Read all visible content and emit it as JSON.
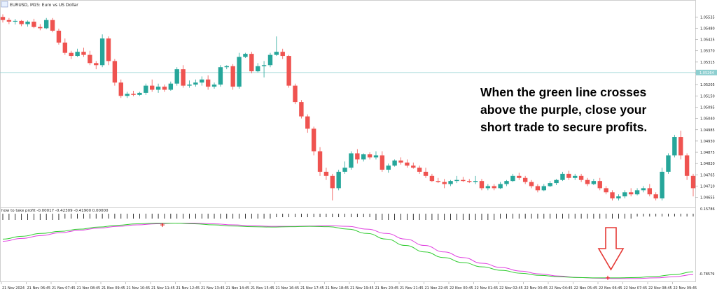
{
  "header": {
    "title": "EURUSD, M15:  Euro vs US Dollar",
    "indicator_label": "how to take profit -0.00017 -0.42309 -0.41900 0.00000"
  },
  "price_axis": {
    "ticks": [
      "1.05535",
      "1.05480",
      "1.05425",
      "1.05370",
      "1.05315",
      "1.05260",
      "1.05205",
      "1.05150",
      "1.05095",
      "1.05040",
      "1.04985",
      "1.04930",
      "1.04875",
      "1.04820",
      "1.04765",
      "1.04710",
      "1.04655"
    ],
    "current_price": "1.05264"
  },
  "indicator_axis": {
    "top": "0.15786",
    "bottom": "-0.78579"
  },
  "time_axis": {
    "labels": [
      "21 Nov 2024",
      "21 Nov 06:45",
      "21 Nov 07:45",
      "21 Nov 08:45",
      "21 Nov 09:45",
      "21 Nov 10:45",
      "21 Nov 11:45",
      "21 Nov 12:45",
      "21 Nov 13:45",
      "21 Nov 14:45",
      "21 Nov 15:45",
      "21 Nov 16:45",
      "21 Nov 17:45",
      "21 Nov 18:45",
      "21 Nov 19:45",
      "21 Nov 20:45",
      "21 Nov 21:45",
      "21 Nov 22:45",
      "22 Nov 00:45",
      "22 Nov 01:45",
      "22 Nov 02:45",
      "22 Nov 03:45",
      "22 Nov 04:45",
      "22 Nov 05:45",
      "22 Nov 06:45",
      "22 Nov 07:45",
      "22 Nov 08:45",
      "22 Nov 09:45"
    ]
  },
  "callout": {
    "lines": [
      "When the green line crosses",
      "above the purple, close your",
      "short trade to secure profits."
    ]
  },
  "colors": {
    "bull": "#26a69a",
    "bear": "#ef5350",
    "green_line": "#2ecc2e",
    "purple_line": "#e040e0",
    "arrow": "#e53935",
    "cross_marker": "#e53935",
    "current_price_line": "#8ecfd0",
    "current_price_box": "#8ecfd0"
  },
  "chart_data": {
    "type": "candlestick",
    "ylim": [
      1.0463,
      1.0557
    ],
    "candles": [
      {
        "o": 1.05535,
        "h": 1.05548,
        "l": 1.05508,
        "c": 1.0552
      },
      {
        "o": 1.0552,
        "h": 1.0553,
        "l": 1.055,
        "c": 1.05512
      },
      {
        "o": 1.05512,
        "h": 1.05525,
        "l": 1.05498,
        "c": 1.05516
      },
      {
        "o": 1.05516,
        "h": 1.0552,
        "l": 1.0549,
        "c": 1.055
      },
      {
        "o": 1.055,
        "h": 1.05518,
        "l": 1.05488,
        "c": 1.05512
      },
      {
        "o": 1.05512,
        "h": 1.05526,
        "l": 1.0548,
        "c": 1.05486
      },
      {
        "o": 1.05486,
        "h": 1.055,
        "l": 1.0547,
        "c": 1.0548
      },
      {
        "o": 1.0548,
        "h": 1.0553,
        "l": 1.05475,
        "c": 1.0552
      },
      {
        "o": 1.0552,
        "h": 1.0553,
        "l": 1.0546,
        "c": 1.05468
      },
      {
        "o": 1.05468,
        "h": 1.05478,
        "l": 1.054,
        "c": 1.0541
      },
      {
        "o": 1.0541,
        "h": 1.0543,
        "l": 1.0535,
        "c": 1.0536
      },
      {
        "o": 1.0536,
        "h": 1.0537,
        "l": 1.0533,
        "c": 1.05345
      },
      {
        "o": 1.05345,
        "h": 1.0538,
        "l": 1.0534,
        "c": 1.05365
      },
      {
        "o": 1.05365,
        "h": 1.05385,
        "l": 1.0534,
        "c": 1.0535
      },
      {
        "o": 1.0535,
        "h": 1.0537,
        "l": 1.053,
        "c": 1.0531
      },
      {
        "o": 1.0531,
        "h": 1.0532,
        "l": 1.0528,
        "c": 1.053
      },
      {
        "o": 1.053,
        "h": 1.0545,
        "l": 1.0529,
        "c": 1.0543
      },
      {
        "o": 1.0543,
        "h": 1.0544,
        "l": 1.053,
        "c": 1.0532
      },
      {
        "o": 1.0532,
        "h": 1.0533,
        "l": 1.052,
        "c": 1.05215
      },
      {
        "o": 1.05215,
        "h": 1.0523,
        "l": 1.0514,
        "c": 1.0515
      },
      {
        "o": 1.0515,
        "h": 1.0517,
        "l": 1.0514,
        "c": 1.0516
      },
      {
        "o": 1.0516,
        "h": 1.05175,
        "l": 1.05148,
        "c": 1.05155
      },
      {
        "o": 1.05155,
        "h": 1.0517,
        "l": 1.0515,
        "c": 1.05165
      },
      {
        "o": 1.05165,
        "h": 1.0521,
        "l": 1.05155,
        "c": 1.052
      },
      {
        "o": 1.052,
        "h": 1.0523,
        "l": 1.0517,
        "c": 1.0518
      },
      {
        "o": 1.0518,
        "h": 1.0521,
        "l": 1.05165,
        "c": 1.05195
      },
      {
        "o": 1.05195,
        "h": 1.05205,
        "l": 1.0517,
        "c": 1.0518
      },
      {
        "o": 1.0518,
        "h": 1.0522,
        "l": 1.05175,
        "c": 1.0521
      },
      {
        "o": 1.0521,
        "h": 1.0529,
        "l": 1.052,
        "c": 1.0528
      },
      {
        "o": 1.0528,
        "h": 1.053,
        "l": 1.0519,
        "c": 1.052
      },
      {
        "o": 1.052,
        "h": 1.05225,
        "l": 1.0519,
        "c": 1.05205
      },
      {
        "o": 1.05205,
        "h": 1.0523,
        "l": 1.05195,
        "c": 1.05215
      },
      {
        "o": 1.05215,
        "h": 1.05245,
        "l": 1.052,
        "c": 1.0523
      },
      {
        "o": 1.0523,
        "h": 1.0525,
        "l": 1.0518,
        "c": 1.05195
      },
      {
        "o": 1.05195,
        "h": 1.05215,
        "l": 1.05185,
        "c": 1.05205
      },
      {
        "o": 1.05205,
        "h": 1.053,
        "l": 1.05195,
        "c": 1.0529
      },
      {
        "o": 1.0529,
        "h": 1.053,
        "l": 1.0528,
        "c": 1.05295
      },
      {
        "o": 1.05295,
        "h": 1.05305,
        "l": 1.0518,
        "c": 1.05195
      },
      {
        "o": 1.05195,
        "h": 1.0536,
        "l": 1.05185,
        "c": 1.0534
      },
      {
        "o": 1.0534,
        "h": 1.0536,
        "l": 1.05335,
        "c": 1.05355
      },
      {
        "o": 1.05355,
        "h": 1.05365,
        "l": 1.0526,
        "c": 1.0527
      },
      {
        "o": 1.0527,
        "h": 1.0531,
        "l": 1.05265,
        "c": 1.05295
      },
      {
        "o": 1.05295,
        "h": 1.0532,
        "l": 1.0524,
        "c": 1.053
      },
      {
        "o": 1.053,
        "h": 1.0536,
        "l": 1.0529,
        "c": 1.0535
      },
      {
        "o": 1.0535,
        "h": 1.0544,
        "l": 1.05345,
        "c": 1.05365
      },
      {
        "o": 1.05365,
        "h": 1.0538,
        "l": 1.0533,
        "c": 1.05345
      },
      {
        "o": 1.05345,
        "h": 1.0535,
        "l": 1.0519,
        "c": 1.052
      },
      {
        "o": 1.052,
        "h": 1.0521,
        "l": 1.0511,
        "c": 1.0512
      },
      {
        "o": 1.0512,
        "h": 1.0513,
        "l": 1.0504,
        "c": 1.0505
      },
      {
        "o": 1.0505,
        "h": 1.0506,
        "l": 1.0497,
        "c": 1.0499
      },
      {
        "o": 1.0499,
        "h": 1.05,
        "l": 1.0486,
        "c": 1.0488
      },
      {
        "o": 1.0488,
        "h": 1.049,
        "l": 1.0476,
        "c": 1.0478
      },
      {
        "o": 1.0478,
        "h": 1.048,
        "l": 1.0474,
        "c": 1.0476
      },
      {
        "o": 1.0476,
        "h": 1.0477,
        "l": 1.0464,
        "c": 1.047
      },
      {
        "o": 1.047,
        "h": 1.0479,
        "l": 1.0469,
        "c": 1.0478
      },
      {
        "o": 1.0478,
        "h": 1.0483,
        "l": 1.0477,
        "c": 1.048
      },
      {
        "o": 1.048,
        "h": 1.0488,
        "l": 1.0479,
        "c": 1.0487
      },
      {
        "o": 1.0487,
        "h": 1.0489,
        "l": 1.0482,
        "c": 1.0484
      },
      {
        "o": 1.0484,
        "h": 1.0487,
        "l": 1.0483,
        "c": 1.04865
      },
      {
        "o": 1.04865,
        "h": 1.04875,
        "l": 1.0484,
        "c": 1.0485
      },
      {
        "o": 1.0485,
        "h": 1.0488,
        "l": 1.0484,
        "c": 1.0486
      },
      {
        "o": 1.0486,
        "h": 1.0488,
        "l": 1.0478,
        "c": 1.0479
      },
      {
        "o": 1.0479,
        "h": 1.0482,
        "l": 1.04775,
        "c": 1.0481
      },
      {
        "o": 1.0481,
        "h": 1.0484,
        "l": 1.04805,
        "c": 1.04835
      },
      {
        "o": 1.04835,
        "h": 1.0485,
        "l": 1.04815,
        "c": 1.04825
      },
      {
        "o": 1.04825,
        "h": 1.0484,
        "l": 1.048,
        "c": 1.0481
      },
      {
        "o": 1.0481,
        "h": 1.04825,
        "l": 1.04795,
        "c": 1.048
      },
      {
        "o": 1.048,
        "h": 1.0481,
        "l": 1.0477,
        "c": 1.0478
      },
      {
        "o": 1.0478,
        "h": 1.048,
        "l": 1.0475,
        "c": 1.0476
      },
      {
        "o": 1.0476,
        "h": 1.0477,
        "l": 1.0473,
        "c": 1.04735
      },
      {
        "o": 1.04735,
        "h": 1.0475,
        "l": 1.04725,
        "c": 1.0473
      },
      {
        "o": 1.0473,
        "h": 1.04745,
        "l": 1.047,
        "c": 1.0472
      },
      {
        "o": 1.0472,
        "h": 1.0474,
        "l": 1.0471,
        "c": 1.04735
      },
      {
        "o": 1.04735,
        "h": 1.0476,
        "l": 1.04725,
        "c": 1.0474
      },
      {
        "o": 1.0474,
        "h": 1.04755,
        "l": 1.0473,
        "c": 1.04735
      },
      {
        "o": 1.04735,
        "h": 1.04745,
        "l": 1.04725,
        "c": 1.0473
      },
      {
        "o": 1.0473,
        "h": 1.0476,
        "l": 1.0472,
        "c": 1.04735
      },
      {
        "o": 1.04735,
        "h": 1.04745,
        "l": 1.0469,
        "c": 1.047
      },
      {
        "o": 1.047,
        "h": 1.0472,
        "l": 1.0469,
        "c": 1.0471
      },
      {
        "o": 1.0471,
        "h": 1.0472,
        "l": 1.0469,
        "c": 1.047
      },
      {
        "o": 1.047,
        "h": 1.0473,
        "l": 1.04695,
        "c": 1.0472
      },
      {
        "o": 1.0472,
        "h": 1.0474,
        "l": 1.0471,
        "c": 1.04735
      },
      {
        "o": 1.04735,
        "h": 1.0477,
        "l": 1.0473,
        "c": 1.0476
      },
      {
        "o": 1.0476,
        "h": 1.04775,
        "l": 1.0474,
        "c": 1.0475
      },
      {
        "o": 1.0475,
        "h": 1.0476,
        "l": 1.0472,
        "c": 1.0473
      },
      {
        "o": 1.0473,
        "h": 1.0474,
        "l": 1.047,
        "c": 1.0471
      },
      {
        "o": 1.0471,
        "h": 1.0472,
        "l": 1.0468,
        "c": 1.0469
      },
      {
        "o": 1.0469,
        "h": 1.0472,
        "l": 1.04685,
        "c": 1.0471
      },
      {
        "o": 1.0471,
        "h": 1.04735,
        "l": 1.04705,
        "c": 1.04725
      },
      {
        "o": 1.04725,
        "h": 1.04745,
        "l": 1.04715,
        "c": 1.0474
      },
      {
        "o": 1.0474,
        "h": 1.0478,
        "l": 1.04735,
        "c": 1.0477
      },
      {
        "o": 1.0477,
        "h": 1.04785,
        "l": 1.0474,
        "c": 1.0475
      },
      {
        "o": 1.0475,
        "h": 1.0477,
        "l": 1.0474,
        "c": 1.0476
      },
      {
        "o": 1.0476,
        "h": 1.0477,
        "l": 1.0473,
        "c": 1.0474
      },
      {
        "o": 1.0474,
        "h": 1.0475,
        "l": 1.0471,
        "c": 1.0472
      },
      {
        "o": 1.0472,
        "h": 1.04745,
        "l": 1.04715,
        "c": 1.04735
      },
      {
        "o": 1.04735,
        "h": 1.0475,
        "l": 1.0469,
        "c": 1.047
      },
      {
        "o": 1.047,
        "h": 1.0471,
        "l": 1.0467,
        "c": 1.0468
      },
      {
        "o": 1.0468,
        "h": 1.0469,
        "l": 1.0464,
        "c": 1.0465
      },
      {
        "o": 1.0465,
        "h": 1.0467,
        "l": 1.0464,
        "c": 1.0466
      },
      {
        "o": 1.0466,
        "h": 1.0469,
        "l": 1.0465,
        "c": 1.0468
      },
      {
        "o": 1.0468,
        "h": 1.047,
        "l": 1.0466,
        "c": 1.0467
      },
      {
        "o": 1.0467,
        "h": 1.047,
        "l": 1.04665,
        "c": 1.0469
      },
      {
        "o": 1.0469,
        "h": 1.0471,
        "l": 1.0468,
        "c": 1.047
      },
      {
        "o": 1.047,
        "h": 1.0472,
        "l": 1.0466,
        "c": 1.0467
      },
      {
        "o": 1.0467,
        "h": 1.0468,
        "l": 1.0464,
        "c": 1.0465
      },
      {
        "o": 1.0465,
        "h": 1.048,
        "l": 1.0464,
        "c": 1.0478
      },
      {
        "o": 1.0478,
        "h": 1.0487,
        "l": 1.0477,
        "c": 1.0486
      },
      {
        "o": 1.0486,
        "h": 1.0496,
        "l": 1.0485,
        "c": 1.0495
      },
      {
        "o": 1.0495,
        "h": 1.0498,
        "l": 1.0484,
        "c": 1.0486
      },
      {
        "o": 1.0486,
        "h": 1.0487,
        "l": 1.0474,
        "c": 1.0476
      },
      {
        "o": 1.0476,
        "h": 1.0477,
        "l": 1.0466,
        "c": 1.047
      }
    ],
    "indicator": {
      "ylim": [
        -0.78579,
        0.15786
      ],
      "green": [
        -0.2,
        -0.16,
        -0.12,
        -0.09,
        -0.06,
        -0.03,
        -0.005,
        0.015,
        0.025,
        0.025,
        0.015,
        0.0,
        -0.015,
        -0.025,
        -0.03,
        -0.025,
        -0.02,
        -0.025,
        -0.06,
        -0.12,
        -0.2,
        -0.29,
        -0.38,
        -0.46,
        -0.53,
        -0.59,
        -0.64,
        -0.68,
        -0.71,
        -0.73,
        -0.74,
        -0.745,
        -0.745,
        -0.74,
        -0.725,
        -0.7,
        -0.66
      ],
      "purple": [
        -0.23,
        -0.19,
        -0.15,
        -0.11,
        -0.075,
        -0.045,
        -0.02,
        0.0,
        0.015,
        0.025,
        0.025,
        0.015,
        0.0,
        -0.012,
        -0.02,
        -0.02,
        -0.015,
        -0.01,
        -0.02,
        -0.06,
        -0.12,
        -0.2,
        -0.29,
        -0.38,
        -0.46,
        -0.54,
        -0.6,
        -0.65,
        -0.69,
        -0.72,
        -0.74,
        -0.75,
        -0.755,
        -0.755,
        -0.745,
        -0.73,
        -0.7
      ],
      "cross_points": [
        {
          "index": 232,
          "value": 0.0
        },
        {
          "index": 868,
          "value": -0.745
        }
      ]
    }
  }
}
